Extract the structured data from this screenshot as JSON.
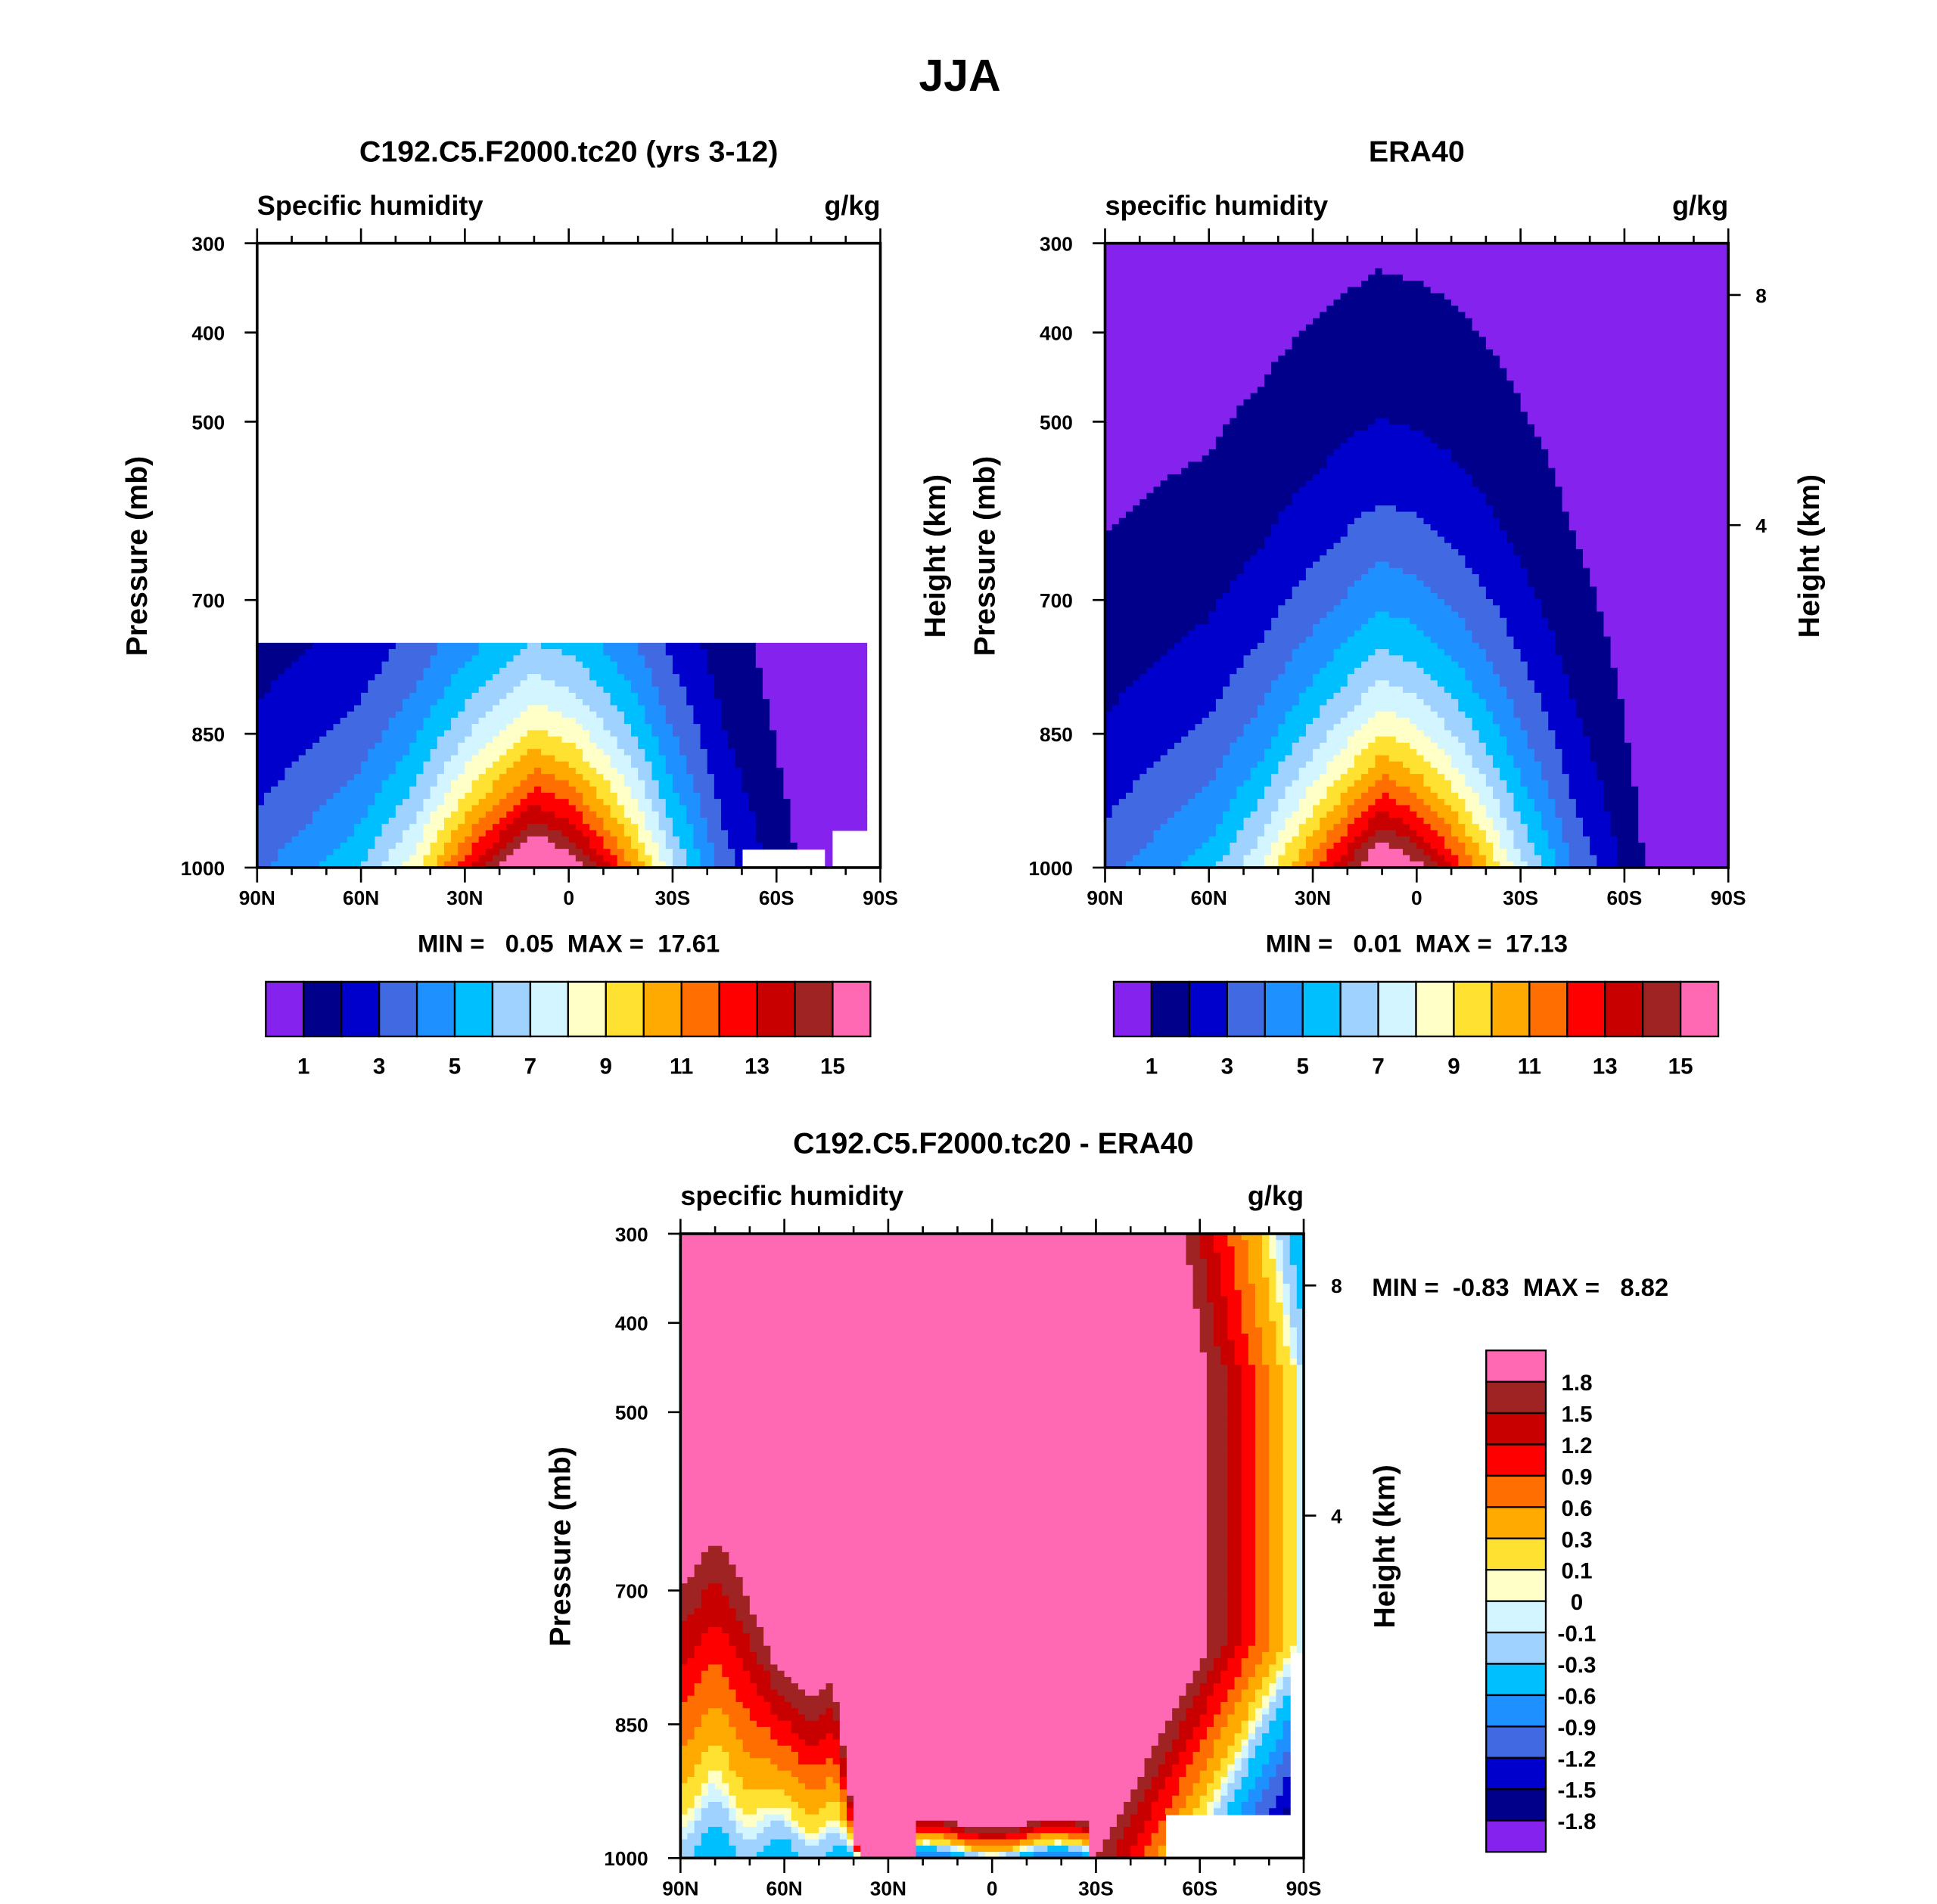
{
  "main_title": "JJA",
  "colors": [
    "#8522EE",
    "#00008B",
    "#0000CD",
    "#4169E1",
    "#1E90FF",
    "#00BFFF",
    "#A0D2FF",
    "#D2F5FF",
    "#FFFFC8",
    "#FFE132",
    "#FFAA00",
    "#FF6E00",
    "#FF0000",
    "#C80000",
    "#A02323",
    "#FF69B4"
  ],
  "chart_data": [
    {
      "type": "heatmap",
      "title": "C192.C5.F2000.tc20 (yrs 3-12)",
      "left_label": "Specific humidity",
      "units": "g/kg",
      "ylabel": "Pressure (mb)",
      "x_ticks": [
        "90N",
        "60N",
        "30N",
        "0",
        "30S",
        "60S",
        "90S"
      ],
      "y_ticks": [
        "300",
        "400",
        "500",
        "700",
        "850",
        "1000"
      ],
      "xlim": [
        90,
        -90
      ],
      "ylim": [
        300,
        1000
      ],
      "stats": "MIN =   0.05  MAX =  17.61",
      "levels": [
        1,
        2,
        3,
        4,
        5,
        6,
        7,
        8,
        9,
        10,
        11,
        12,
        13,
        14,
        15
      ],
      "level_labels": [
        "1",
        "3",
        "5",
        "7",
        "9",
        "11",
        "13",
        "15"
      ]
    },
    {
      "type": "heatmap",
      "title": "ERA40",
      "left_label": "specific humidity",
      "units": "g/kg",
      "ylabel": "Pressure (mb)",
      "ylabel2": "Height (km)",
      "right_label": "Height (km)",
      "height_ticks": [
        "8",
        "4"
      ],
      "x_ticks": [
        "90N",
        "60N",
        "30N",
        "0",
        "30S",
        "60S",
        "90S"
      ],
      "y_ticks": [
        "300",
        "400",
        "500",
        "700",
        "850",
        "1000"
      ],
      "xlim": [
        90,
        -90
      ],
      "ylim": [
        300,
        1000
      ],
      "stats": "MIN =   0.01  MAX =  17.13",
      "levels": [
        1,
        2,
        3,
        4,
        5,
        6,
        7,
        8,
        9,
        10,
        11,
        12,
        13,
        14,
        15
      ],
      "level_labels": [
        "1",
        "3",
        "5",
        "7",
        "9",
        "11",
        "13",
        "15"
      ]
    },
    {
      "type": "heatmap",
      "title": "C192.C5.F2000.tc20 - ERA40",
      "left_label": "specific humidity",
      "units": "g/kg",
      "ylabel": "Pressure (mb)",
      "right_label": "Height (km)",
      "height_ticks": [
        "8",
        "4"
      ],
      "x_ticks": [
        "90N",
        "60N",
        "30N",
        "0",
        "30S",
        "60S",
        "90S"
      ],
      "y_ticks": [
        "300",
        "400",
        "500",
        "700",
        "850",
        "1000"
      ],
      "xlim": [
        90,
        -90
      ],
      "ylim": [
        300,
        1000
      ],
      "stats": "MIN =  -0.83  MAX =   8.82",
      "levels": [
        -1.8,
        -1.5,
        -1.2,
        -0.9,
        -0.6,
        -0.3,
        -0.1,
        0,
        0.1,
        0.3,
        0.6,
        0.9,
        1.2,
        1.5,
        1.8
      ],
      "level_labels": [
        "-1.8",
        "-1.5",
        "-1.2",
        "-0.9",
        "-0.6",
        "-0.3",
        "-0.1",
        "0",
        "0.1",
        "0.3",
        "0.6",
        "0.9",
        "1.2",
        "1.5",
        "1.8"
      ]
    }
  ]
}
